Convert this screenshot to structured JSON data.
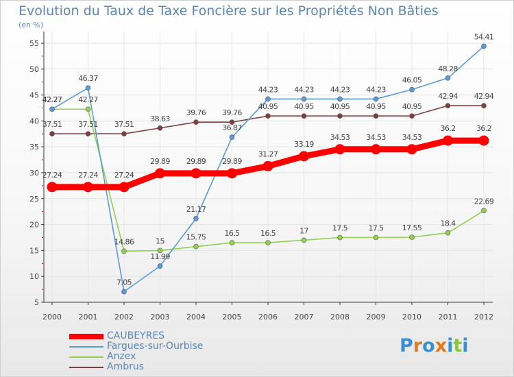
{
  "header": {
    "title": "Evolution du Taux de Taxe Foncière sur les Propriétés Non Bâties",
    "subtitle": "(en %)"
  },
  "logo": {
    "text": "Proxiti",
    "colors": [
      "#3a8fd0",
      "#e07a1f",
      "#3a8fd0",
      "#e07a1f",
      "#3a8fd0",
      "#8cc63f",
      "#3a8fd0"
    ]
  },
  "chart_data": {
    "type": "line",
    "x": [
      "2000",
      "2001",
      "2002",
      "2003",
      "2004",
      "2005",
      "2006",
      "2007",
      "2008",
      "2009",
      "2010",
      "2011",
      "2012"
    ],
    "ylim": [
      5,
      55
    ],
    "yticks": [
      5,
      10,
      15,
      20,
      25,
      30,
      35,
      40,
      45,
      50,
      55
    ],
    "grid": true,
    "legend_position": "bottom-left",
    "series": [
      {
        "name": "CAUBEYRES",
        "color": "#ff0000",
        "values": [
          27.24,
          27.24,
          27.24,
          29.89,
          29.89,
          29.89,
          31.27,
          33.19,
          34.53,
          34.53,
          34.53,
          36.2,
          36.2
        ],
        "labels": [
          "27.24",
          "27.24",
          "27.24",
          "29.89",
          "29.89",
          "29.89",
          "31.27",
          "33.19",
          "34.53",
          "34.53",
          "34.53",
          "36.2",
          "36.2"
        ]
      },
      {
        "name": "Fargues-sur-Ourbise",
        "color": "#5b9bd5",
        "values": [
          42.27,
          46.37,
          7.05,
          11.99,
          21.17,
          36.87,
          44.23,
          44.23,
          44.23,
          44.23,
          46.05,
          48.28,
          54.41
        ],
        "labels": [
          "42.27",
          "46.37",
          "7.05",
          "11.99",
          "21.17",
          "36.87",
          "44.23",
          "44.23",
          "44.23",
          "44.23",
          "46.05",
          "48.28",
          "54.41"
        ]
      },
      {
        "name": "Anzex",
        "color": "#92d050",
        "values": [
          42.27,
          42.27,
          14.86,
          15,
          15.75,
          16.5,
          16.5,
          17,
          17.5,
          17.5,
          17.55,
          18.4,
          22.69
        ],
        "labels": [
          "42.27",
          "42.27",
          "14.86",
          "15",
          "15.75",
          "16.5",
          "16.5",
          "17",
          "17.5",
          "17.5",
          "17.55",
          "18.4",
          "22.69"
        ]
      },
      {
        "name": "Ambrus",
        "color": "#7f3f3f",
        "values": [
          37.51,
          37.51,
          37.51,
          38.63,
          39.76,
          39.76,
          40.95,
          40.95,
          40.95,
          40.95,
          40.95,
          42.94,
          42.94
        ],
        "labels": [
          "37.51",
          "37.51",
          "37.51",
          "38.63",
          "39.76",
          "39.76",
          "40.95",
          "40.95",
          "40.95",
          "40.95",
          "40.95",
          "42.94",
          "42.94"
        ]
      }
    ]
  }
}
